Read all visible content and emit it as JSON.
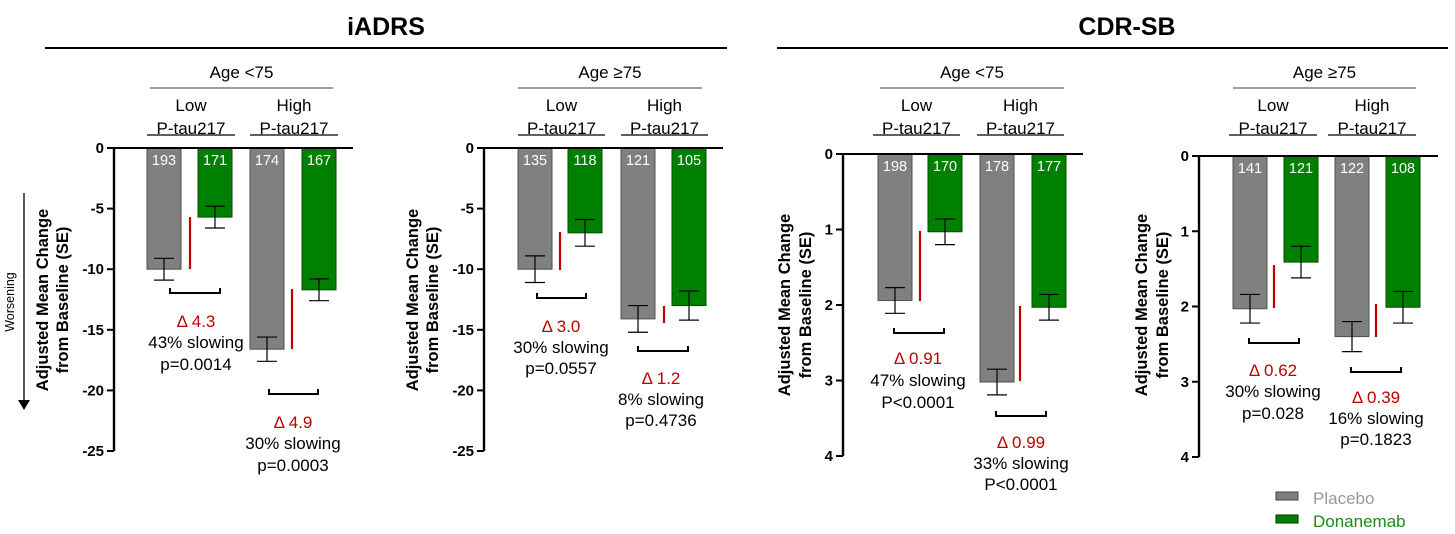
{
  "colors": {
    "placebo": "#808080",
    "donanemab": "#008000",
    "placebo_border": "#505050",
    "donanemab_border": "#004d00",
    "delta": "#c00000",
    "placebo_legend_text": "#999999",
    "donanemab_legend_text": "#1a8c1a"
  },
  "worsening_label": "Worsening",
  "chart_data": [
    {
      "type": "bar",
      "group_title": "iADRS",
      "subtitle": "Age <75",
      "categories": [
        "Low\nP-tau217",
        "High\nP-tau217"
      ],
      "category_lines": [
        [
          "Low",
          "P-tau217"
        ],
        [
          "High",
          "P-tau217"
        ]
      ],
      "ylabel": [
        "Adjusted Mean Change",
        "from Baseline (SE)"
      ],
      "ylim": [
        -25,
        0
      ],
      "yticks": [
        0,
        -5,
        -10,
        -15,
        -20,
        -25
      ],
      "tick_labels": [
        "0",
        "-5",
        "-10",
        "-15",
        "-20",
        "-25"
      ],
      "series": [
        {
          "name": "Placebo",
          "values": [
            -10.0,
            -16.6
          ],
          "se": [
            0.9,
            1.0
          ],
          "n": [
            "193",
            "174"
          ]
        },
        {
          "name": "Donanemab",
          "values": [
            -5.7,
            -11.7
          ],
          "se": [
            0.9,
            0.9
          ],
          "n": [
            "171",
            "167"
          ]
        }
      ],
      "annotations": [
        {
          "delta": "Δ 4.3",
          "slowing": "43% slowing",
          "p": "p=0.0014"
        },
        {
          "delta": "Δ 4.9",
          "slowing": "30% slowing",
          "p": "p=0.0003"
        }
      ]
    },
    {
      "type": "bar",
      "group_title": "iADRS",
      "subtitle": "Age ≥75",
      "categories": [
        "Low\nP-tau217",
        "High\nP-tau217"
      ],
      "category_lines": [
        [
          "Low",
          "P-tau217"
        ],
        [
          "High",
          "P-tau217"
        ]
      ],
      "ylabel": [
        "Adjusted Mean Change",
        "from Baseline (SE)"
      ],
      "ylim": [
        -25,
        0
      ],
      "yticks": [
        0,
        -5,
        -10,
        -15,
        -20,
        -25
      ],
      "tick_labels": [
        "0",
        "-5",
        "-10",
        "-15",
        "-20",
        "-25"
      ],
      "series": [
        {
          "name": "Placebo",
          "values": [
            -10.0,
            -14.1
          ],
          "se": [
            1.1,
            1.1
          ],
          "n": [
            "135",
            "121"
          ]
        },
        {
          "name": "Donanemab",
          "values": [
            -7.0,
            -13.0
          ],
          "se": [
            1.1,
            1.2
          ],
          "n": [
            "118",
            "105"
          ]
        }
      ],
      "annotations": [
        {
          "delta": "Δ 3.0",
          "slowing": "30% slowing",
          "p": "p=0.0557"
        },
        {
          "delta": "Δ 1.2",
          "slowing": "8% slowing",
          "p": "p=0.4736"
        }
      ]
    },
    {
      "type": "bar",
      "group_title": "CDR-SB",
      "subtitle": "Age <75",
      "categories": [
        "Low\nP-tau217",
        "High\nP-tau217"
      ],
      "category_lines": [
        [
          "Low",
          "P-tau217"
        ],
        [
          "High",
          "P-tau217"
        ]
      ],
      "ylabel": [
        "Adjusted Mean Change",
        "from Baseline (SE)"
      ],
      "ylim": [
        4,
        0
      ],
      "yticks": [
        0,
        1,
        2,
        3,
        4
      ],
      "tick_labels": [
        "0",
        "1",
        "2",
        "3",
        "4"
      ],
      "series": [
        {
          "name": "Placebo",
          "values": [
            1.94,
            3.02
          ],
          "se": [
            0.17,
            0.17
          ],
          "n": [
            "198",
            "178"
          ]
        },
        {
          "name": "Donanemab",
          "values": [
            1.03,
            2.03
          ],
          "se": [
            0.17,
            0.17
          ],
          "n": [
            "170",
            "177"
          ]
        }
      ],
      "annotations": [
        {
          "delta": "Δ 0.91",
          "slowing": "47% slowing",
          "p": "P<0.0001"
        },
        {
          "delta": "Δ 0.99",
          "slowing": "33% slowing",
          "p": "P<0.0001"
        }
      ]
    },
    {
      "type": "bar",
      "group_title": "CDR-SB",
      "subtitle": "Age ≥75",
      "categories": [
        "Low\nP-tau217",
        "High\nP-tau217"
      ],
      "category_lines": [
        [
          "Low",
          "P-tau217"
        ],
        [
          "High",
          "P-tau217"
        ]
      ],
      "ylabel": [
        "Adjusted Mean Change",
        "from Baseline (SE)"
      ],
      "ylim": [
        4,
        0
      ],
      "yticks": [
        0,
        1,
        2,
        3,
        4
      ],
      "tick_labels": [
        "0",
        "1",
        "2",
        "3",
        "4"
      ],
      "series": [
        {
          "name": "Placebo",
          "values": [
            2.03,
            2.4
          ],
          "se": [
            0.19,
            0.2
          ],
          "n": [
            "141",
            "122"
          ]
        },
        {
          "name": "Donanemab",
          "values": [
            1.41,
            2.01
          ],
          "se": [
            0.21,
            0.21
          ],
          "n": [
            "121",
            "108"
          ]
        }
      ],
      "annotations": [
        {
          "delta": "Δ 0.62",
          "slowing": "30% slowing",
          "p": "p=0.028"
        },
        {
          "delta": "Δ 0.39",
          "slowing": "16% slowing",
          "p": "p=0.1823"
        }
      ]
    }
  ],
  "group_titles": [
    "iADRS",
    "CDR-SB"
  ],
  "legend": [
    {
      "label": "Placebo",
      "series": "placebo"
    },
    {
      "label": "Donanemab",
      "series": "donanemab"
    }
  ]
}
